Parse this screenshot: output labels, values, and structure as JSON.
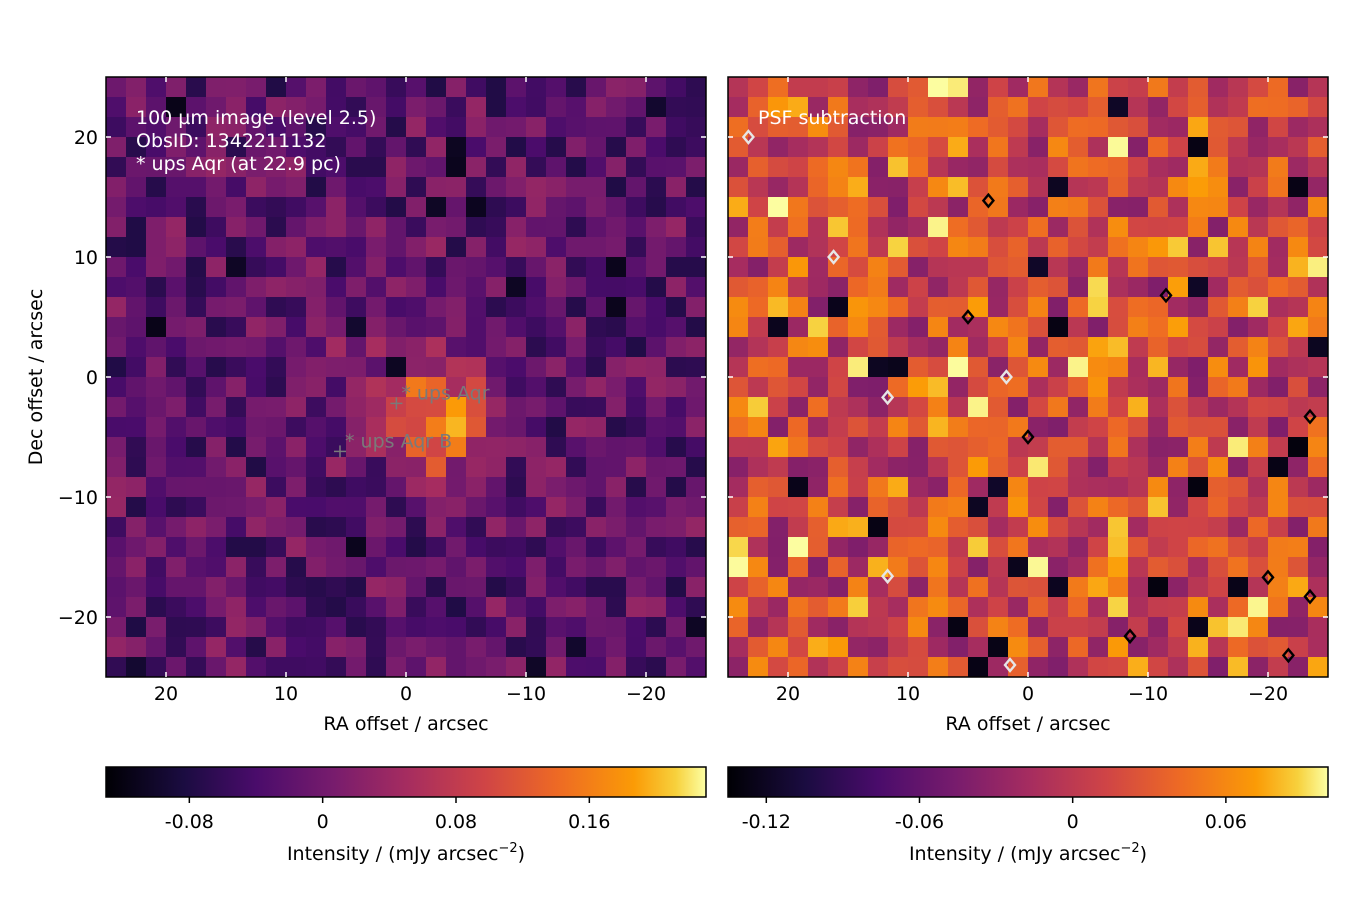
{
  "chart_data": [
    {
      "type": "heatmap",
      "title": "",
      "annotation_lines": [
        "100 µm image (level 2.5)",
        "ObsID: 1342211132",
        "* ups Aqr (at 22.9 pc)"
      ],
      "xlabel": "RA offset / arcsec",
      "ylabel": "Dec offset / arcsec",
      "xlim": [
        25,
        -25
      ],
      "ylim": [
        -25,
        25
      ],
      "x_ticks": [
        20,
        10,
        0,
        -10,
        -20
      ],
      "x_tick_labels": [
        "20",
        "10",
        "0",
        "−10",
        "−20"
      ],
      "y_ticks": [
        20,
        10,
        0,
        -10,
        -20
      ],
      "y_tick_labels": [
        "20",
        "10",
        "0",
        "−10",
        "−20"
      ],
      "grid": false,
      "markers": [
        {
          "label": "* ups Aqr",
          "x": 0.8,
          "y": -2.2
        },
        {
          "label": "* ups Aqr B",
          "x": 5.5,
          "y": -6.2
        }
      ],
      "colorscale": "inferno",
      "colorbar": {
        "label": "Intensity / (mJy arcsec",
        "label_exp": "−2",
        "label_end": ")",
        "range": [
          -0.13,
          0.23
        ],
        "ticks": [
          -0.08,
          0,
          0.08,
          0.16
        ],
        "tick_labels": [
          "-0.08",
          "0",
          "0.08",
          "0.16"
        ]
      }
    },
    {
      "type": "heatmap",
      "title": "",
      "annotation_lines": [
        "PSF subtraction"
      ],
      "xlabel": "RA offset / arcsec",
      "ylabel": "",
      "xlim": [
        25,
        -25
      ],
      "ylim": [
        -25,
        25
      ],
      "x_ticks": [
        20,
        10,
        0,
        -10,
        -20
      ],
      "x_tick_labels": [
        "20",
        "10",
        "0",
        "−10",
        "−20"
      ],
      "grid": false,
      "colorscale": "inferno",
      "contours": {
        "black_levels_at": [
          [
            3.3,
            14.7
          ],
          [
            5.0,
            5.0
          ],
          [
            -11.5,
            6.8
          ],
          [
            0.0,
            -5.0
          ],
          [
            -23.5,
            -3.3
          ],
          [
            -20.0,
            -16.7
          ],
          [
            -23.5,
            -18.3
          ],
          [
            -8.5,
            -21.6
          ],
          [
            -21.7,
            -23.2
          ]
        ],
        "white_levels_at": [
          [
            23.3,
            20.0
          ],
          [
            16.2,
            10.0
          ],
          [
            11.7,
            -1.7
          ],
          [
            1.8,
            0.0
          ],
          [
            11.7,
            -16.6
          ],
          [
            1.5,
            -24.0
          ]
        ]
      },
      "colorbar": {
        "label": "Intensity / (mJy arcsec",
        "label_exp": "−2",
        "label_end": ")",
        "range": [
          -0.135,
          0.1
        ],
        "ticks": [
          -0.12,
          -0.06,
          0,
          0.06
        ],
        "tick_labels": [
          "-0.12",
          "-0.06",
          "0",
          "0.06"
        ]
      }
    }
  ]
}
